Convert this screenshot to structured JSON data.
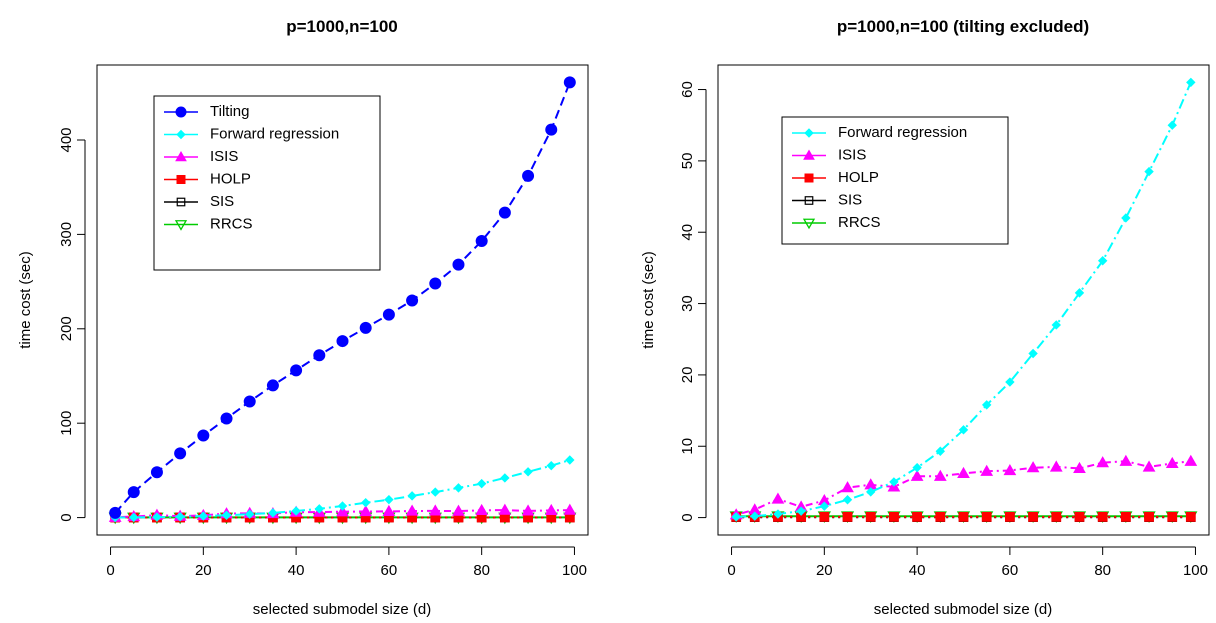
{
  "chart_data": [
    {
      "type": "line",
      "title": "p=1000,n=100",
      "xlabel": "selected submodel size (d)",
      "ylabel": "time cost (sec)",
      "xlim": [
        1,
        99
      ],
      "ylim": [
        0,
        461
      ],
      "xticks": [
        0,
        20,
        40,
        60,
        80,
        100
      ],
      "yticks": [
        0,
        100,
        200,
        300,
        400
      ],
      "legend_position": "top-left",
      "x": [
        1,
        5,
        10,
        15,
        20,
        25,
        30,
        35,
        40,
        45,
        50,
        55,
        60,
        65,
        70,
        75,
        80,
        85,
        90,
        95,
        99
      ],
      "series": [
        {
          "name": "Tilting",
          "color": "#0000ff",
          "marker": "filled-circle",
          "line": "dashed",
          "values": [
            5,
            27,
            48,
            68,
            87,
            105,
            123,
            140,
            156,
            172,
            187,
            201,
            215,
            230,
            248,
            268,
            293,
            323,
            362,
            411,
            461
          ]
        },
        {
          "name": "Forward regression",
          "color": "#00ffff",
          "marker": "filled-diamond",
          "line": "dashdot",
          "values": [
            0.1,
            0.2,
            0.5,
            0.9,
            1.6,
            2.5,
            3.6,
            5.0,
            7.0,
            9.3,
            12.3,
            15.8,
            19.0,
            23.0,
            27.0,
            31.5,
            36.0,
            42.0,
            48.5,
            55.0,
            61.0
          ]
        },
        {
          "name": "ISIS",
          "color": "#ff00ff",
          "marker": "filled-triangle",
          "line": "dotdash",
          "values": [
            0.4,
            1.1,
            2.6,
            1.5,
            2.4,
            4.2,
            4.6,
            4.3,
            5.8,
            5.8,
            6.2,
            6.5,
            6.6,
            7.0,
            7.1,
            6.9,
            7.7,
            7.9,
            7.1,
            7.6,
            7.9
          ]
        },
        {
          "name": "HOLP",
          "color": "#ff0000",
          "marker": "filled-square",
          "line": "dotted",
          "values": [
            0.1,
            0.1,
            0.1,
            0.1,
            0.1,
            0.1,
            0.1,
            0.1,
            0.1,
            0.1,
            0.1,
            0.1,
            0.1,
            0.1,
            0.1,
            0.1,
            0.1,
            0.1,
            0.1,
            0.1,
            0.1
          ]
        },
        {
          "name": "SIS",
          "color": "#000000",
          "marker": "open-square",
          "line": "dotted",
          "values": [
            0.05,
            0.05,
            0.05,
            0.05,
            0.05,
            0.05,
            0.05,
            0.05,
            0.05,
            0.05,
            0.05,
            0.05,
            0.05,
            0.05,
            0.05,
            0.05,
            0.05,
            0.05,
            0.05,
            0.05,
            0.05
          ]
        },
        {
          "name": "RRCS",
          "color": "#00cc00",
          "marker": "open-triangle-down",
          "line": "solid",
          "values": [
            0.2,
            0.2,
            0.2,
            0.2,
            0.2,
            0.2,
            0.2,
            0.2,
            0.2,
            0.2,
            0.2,
            0.2,
            0.2,
            0.2,
            0.2,
            0.2,
            0.2,
            0.2,
            0.2,
            0.2,
            0.2
          ]
        }
      ]
    },
    {
      "type": "line",
      "title": "p=1000,n=100 (tilting excluded)",
      "xlabel": "selected submodel size (d)",
      "ylabel": "time cost (sec)",
      "xlim": [
        1,
        99
      ],
      "ylim": [
        0,
        61
      ],
      "xticks": [
        0,
        20,
        40,
        60,
        80,
        100
      ],
      "yticks": [
        0,
        10,
        20,
        30,
        40,
        50,
        60
      ],
      "legend_position": "top-left",
      "x": [
        1,
        5,
        10,
        15,
        20,
        25,
        30,
        35,
        40,
        45,
        50,
        55,
        60,
        65,
        70,
        75,
        80,
        85,
        90,
        95,
        99
      ],
      "series": [
        {
          "name": "Forward regression",
          "color": "#00ffff",
          "marker": "filled-diamond",
          "line": "dashdot",
          "values": [
            0.1,
            0.2,
            0.5,
            0.9,
            1.6,
            2.5,
            3.6,
            5.0,
            7.0,
            9.3,
            12.3,
            15.8,
            19.0,
            23.0,
            27.0,
            31.5,
            36.0,
            42.0,
            48.5,
            55.0,
            61.0
          ]
        },
        {
          "name": "ISIS",
          "color": "#ff00ff",
          "marker": "filled-triangle",
          "line": "dotdash",
          "values": [
            0.4,
            1.1,
            2.6,
            1.5,
            2.4,
            4.2,
            4.6,
            4.3,
            5.8,
            5.8,
            6.2,
            6.5,
            6.6,
            7.0,
            7.1,
            6.9,
            7.7,
            7.9,
            7.1,
            7.6,
            7.9
          ]
        },
        {
          "name": "HOLP",
          "color": "#ff0000",
          "marker": "filled-square",
          "line": "dotted",
          "values": [
            0.1,
            0.1,
            0.1,
            0.1,
            0.1,
            0.1,
            0.1,
            0.1,
            0.1,
            0.1,
            0.1,
            0.1,
            0.1,
            0.1,
            0.1,
            0.1,
            0.1,
            0.1,
            0.1,
            0.1,
            0.1
          ]
        },
        {
          "name": "SIS",
          "color": "#000000",
          "marker": "open-square",
          "line": "dotted",
          "values": [
            0.05,
            0.05,
            0.05,
            0.05,
            0.05,
            0.05,
            0.05,
            0.05,
            0.05,
            0.05,
            0.05,
            0.05,
            0.05,
            0.05,
            0.05,
            0.05,
            0.05,
            0.05,
            0.05,
            0.05,
            0.05
          ]
        },
        {
          "name": "RRCS",
          "color": "#00cc00",
          "marker": "open-triangle-down",
          "line": "solid",
          "values": [
            0.2,
            0.2,
            0.2,
            0.2,
            0.2,
            0.2,
            0.2,
            0.2,
            0.2,
            0.2,
            0.2,
            0.2,
            0.2,
            0.2,
            0.2,
            0.2,
            0.2,
            0.2,
            0.2,
            0.2,
            0.2
          ]
        }
      ]
    }
  ]
}
